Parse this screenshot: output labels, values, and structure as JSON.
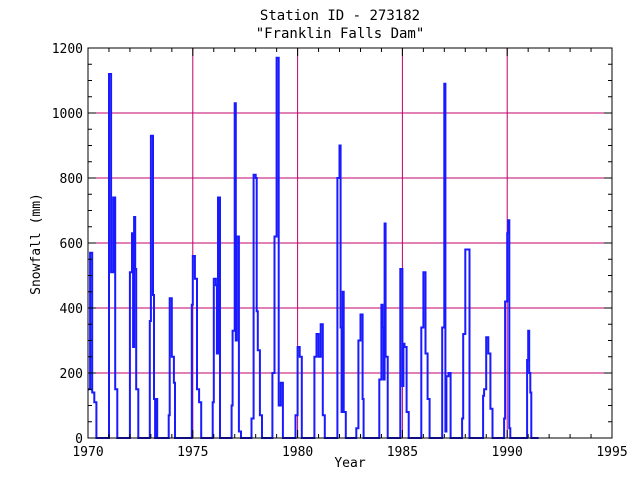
{
  "chart_data": {
    "type": "line",
    "title": "Station ID - 273182",
    "subtitle": "\"Franklin Falls Dam\"",
    "xlabel": "Year",
    "ylabel": "Snowfall (mm)",
    "xlim": [
      1970,
      1995
    ],
    "ylim": [
      0,
      1200
    ],
    "xticks": [
      1970,
      1975,
      1980,
      1985,
      1990,
      1995
    ],
    "yticks": [
      0,
      200,
      400,
      600,
      800,
      1000,
      1200
    ],
    "grid": true,
    "colors": {
      "series": "#1a1aff",
      "grid": "#c0006a",
      "axes": "#000000"
    },
    "series": [
      {
        "values": [
          [
            1970.0,
            150
          ],
          [
            1970.1,
            570
          ],
          [
            1970.2,
            140
          ],
          [
            1970.3,
            110
          ],
          [
            1970.4,
            0
          ],
          [
            1970.9,
            0
          ],
          [
            1971.0,
            1120
          ],
          [
            1971.1,
            510
          ],
          [
            1971.2,
            740
          ],
          [
            1971.3,
            150
          ],
          [
            1971.4,
            0
          ],
          [
            1971.9,
            0
          ],
          [
            1972.0,
            510
          ],
          [
            1972.1,
            630
          ],
          [
            1972.15,
            280
          ],
          [
            1972.2,
            680
          ],
          [
            1972.25,
            520
          ],
          [
            1972.3,
            150
          ],
          [
            1972.4,
            0
          ],
          [
            1972.9,
            0
          ],
          [
            1972.95,
            360
          ],
          [
            1973.0,
            930
          ],
          [
            1973.1,
            440
          ],
          [
            1973.15,
            120
          ],
          [
            1973.2,
            0
          ],
          [
            1973.25,
            120
          ],
          [
            1973.3,
            0
          ],
          [
            1973.8,
            0
          ],
          [
            1973.85,
            70
          ],
          [
            1973.9,
            430
          ],
          [
            1974.0,
            250
          ],
          [
            1974.1,
            170
          ],
          [
            1974.15,
            0
          ],
          [
            1974.9,
            0
          ],
          [
            1974.95,
            410
          ],
          [
            1975.0,
            560
          ],
          [
            1975.1,
            490
          ],
          [
            1975.2,
            150
          ],
          [
            1975.3,
            110
          ],
          [
            1975.4,
            0
          ],
          [
            1975.9,
            0
          ],
          [
            1975.95,
            110
          ],
          [
            1976.0,
            490
          ],
          [
            1976.1,
            470
          ],
          [
            1976.15,
            260
          ],
          [
            1976.2,
            740
          ],
          [
            1976.3,
            0
          ],
          [
            1976.8,
            0
          ],
          [
            1976.85,
            100
          ],
          [
            1976.9,
            330
          ],
          [
            1977.0,
            1030
          ],
          [
            1977.05,
            300
          ],
          [
            1977.1,
            620
          ],
          [
            1977.2,
            20
          ],
          [
            1977.3,
            0
          ],
          [
            1977.7,
            0
          ],
          [
            1977.8,
            60
          ],
          [
            1977.9,
            810
          ],
          [
            1978.0,
            800
          ],
          [
            1978.05,
            390
          ],
          [
            1978.1,
            270
          ],
          [
            1978.2,
            70
          ],
          [
            1978.3,
            0
          ],
          [
            1978.7,
            0
          ],
          [
            1978.8,
            200
          ],
          [
            1978.9,
            620
          ],
          [
            1979.0,
            1170
          ],
          [
            1979.1,
            100
          ],
          [
            1979.2,
            170
          ],
          [
            1979.3,
            0
          ],
          [
            1979.8,
            0
          ],
          [
            1979.9,
            70
          ],
          [
            1980.0,
            280
          ],
          [
            1980.1,
            250
          ],
          [
            1980.2,
            0
          ],
          [
            1980.7,
            0
          ],
          [
            1980.8,
            250
          ],
          [
            1980.9,
            320
          ],
          [
            1981.0,
            250
          ],
          [
            1981.1,
            350
          ],
          [
            1981.2,
            70
          ],
          [
            1981.3,
            0
          ],
          [
            1981.8,
            0
          ],
          [
            1981.9,
            800
          ],
          [
            1982.0,
            900
          ],
          [
            1982.05,
            340
          ],
          [
            1982.1,
            80
          ],
          [
            1982.15,
            450
          ],
          [
            1982.2,
            80
          ],
          [
            1982.3,
            0
          ],
          [
            1982.7,
            0
          ],
          [
            1982.8,
            30
          ],
          [
            1982.9,
            300
          ],
          [
            1983.0,
            380
          ],
          [
            1983.1,
            120
          ],
          [
            1983.15,
            0
          ],
          [
            1983.8,
            0
          ],
          [
            1983.9,
            180
          ],
          [
            1984.0,
            410
          ],
          [
            1984.05,
            340
          ],
          [
            1984.1,
            180
          ],
          [
            1984.15,
            660
          ],
          [
            1984.2,
            250
          ],
          [
            1984.3,
            0
          ],
          [
            1984.8,
            0
          ],
          [
            1984.9,
            520
          ],
          [
            1985.0,
            160
          ],
          [
            1985.05,
            290
          ],
          [
            1985.1,
            280
          ],
          [
            1985.2,
            80
          ],
          [
            1985.3,
            0
          ],
          [
            1985.8,
            0
          ],
          [
            1985.9,
            340
          ],
          [
            1986.0,
            510
          ],
          [
            1986.1,
            260
          ],
          [
            1986.2,
            120
          ],
          [
            1986.3,
            0
          ],
          [
            1986.8,
            0
          ],
          [
            1986.9,
            340
          ],
          [
            1987.0,
            1090
          ],
          [
            1987.05,
            20
          ],
          [
            1987.1,
            190
          ],
          [
            1987.2,
            200
          ],
          [
            1987.3,
            0
          ],
          [
            1987.8,
            0
          ],
          [
            1987.85,
            60
          ],
          [
            1987.9,
            320
          ],
          [
            1988.0,
            580
          ],
          [
            1988.1,
            580
          ],
          [
            1988.2,
            0
          ],
          [
            1988.8,
            0
          ],
          [
            1988.85,
            130
          ],
          [
            1988.9,
            150
          ],
          [
            1989.0,
            310
          ],
          [
            1989.1,
            260
          ],
          [
            1989.2,
            90
          ],
          [
            1989.3,
            0
          ],
          [
            1989.8,
            0
          ],
          [
            1989.85,
            60
          ],
          [
            1989.9,
            420
          ],
          [
            1990.0,
            630
          ],
          [
            1990.05,
            670
          ],
          [
            1990.1,
            30
          ],
          [
            1990.15,
            0
          ],
          [
            1990.9,
            0
          ],
          [
            1990.95,
            240
          ],
          [
            1991.0,
            330
          ],
          [
            1991.05,
            200
          ],
          [
            1991.1,
            140
          ],
          [
            1991.15,
            0
          ],
          [
            1991.5,
            0
          ]
        ]
      }
    ]
  }
}
